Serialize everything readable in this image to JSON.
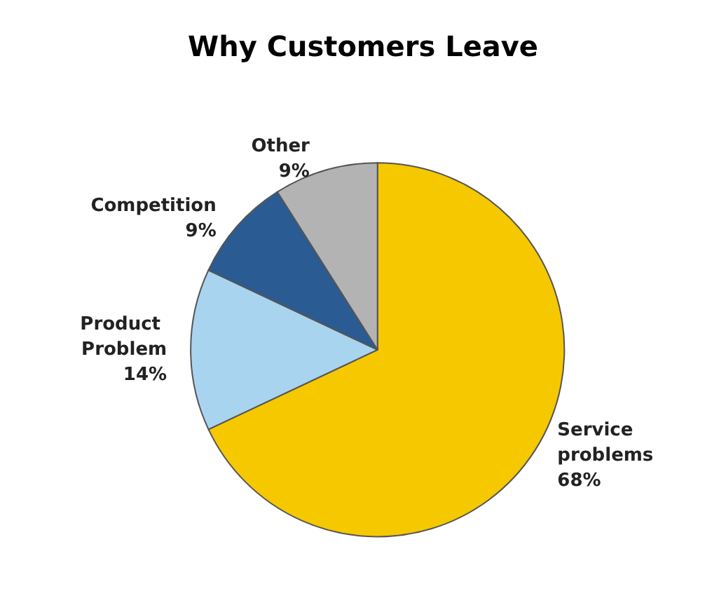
{
  "chart_data": {
    "type": "pie",
    "title": "Why Customers Leave",
    "categories": [
      "Service problems",
      "Product Problem",
      "Competition",
      "Other"
    ],
    "values": [
      68,
      14,
      9,
      9
    ],
    "colors": [
      "#f5c800",
      "#a9d4f0",
      "#2a5c93",
      "#b3b3b3"
    ],
    "value_labels": [
      "68%",
      "14%",
      "9%",
      "9%"
    ],
    "legend": false
  }
}
